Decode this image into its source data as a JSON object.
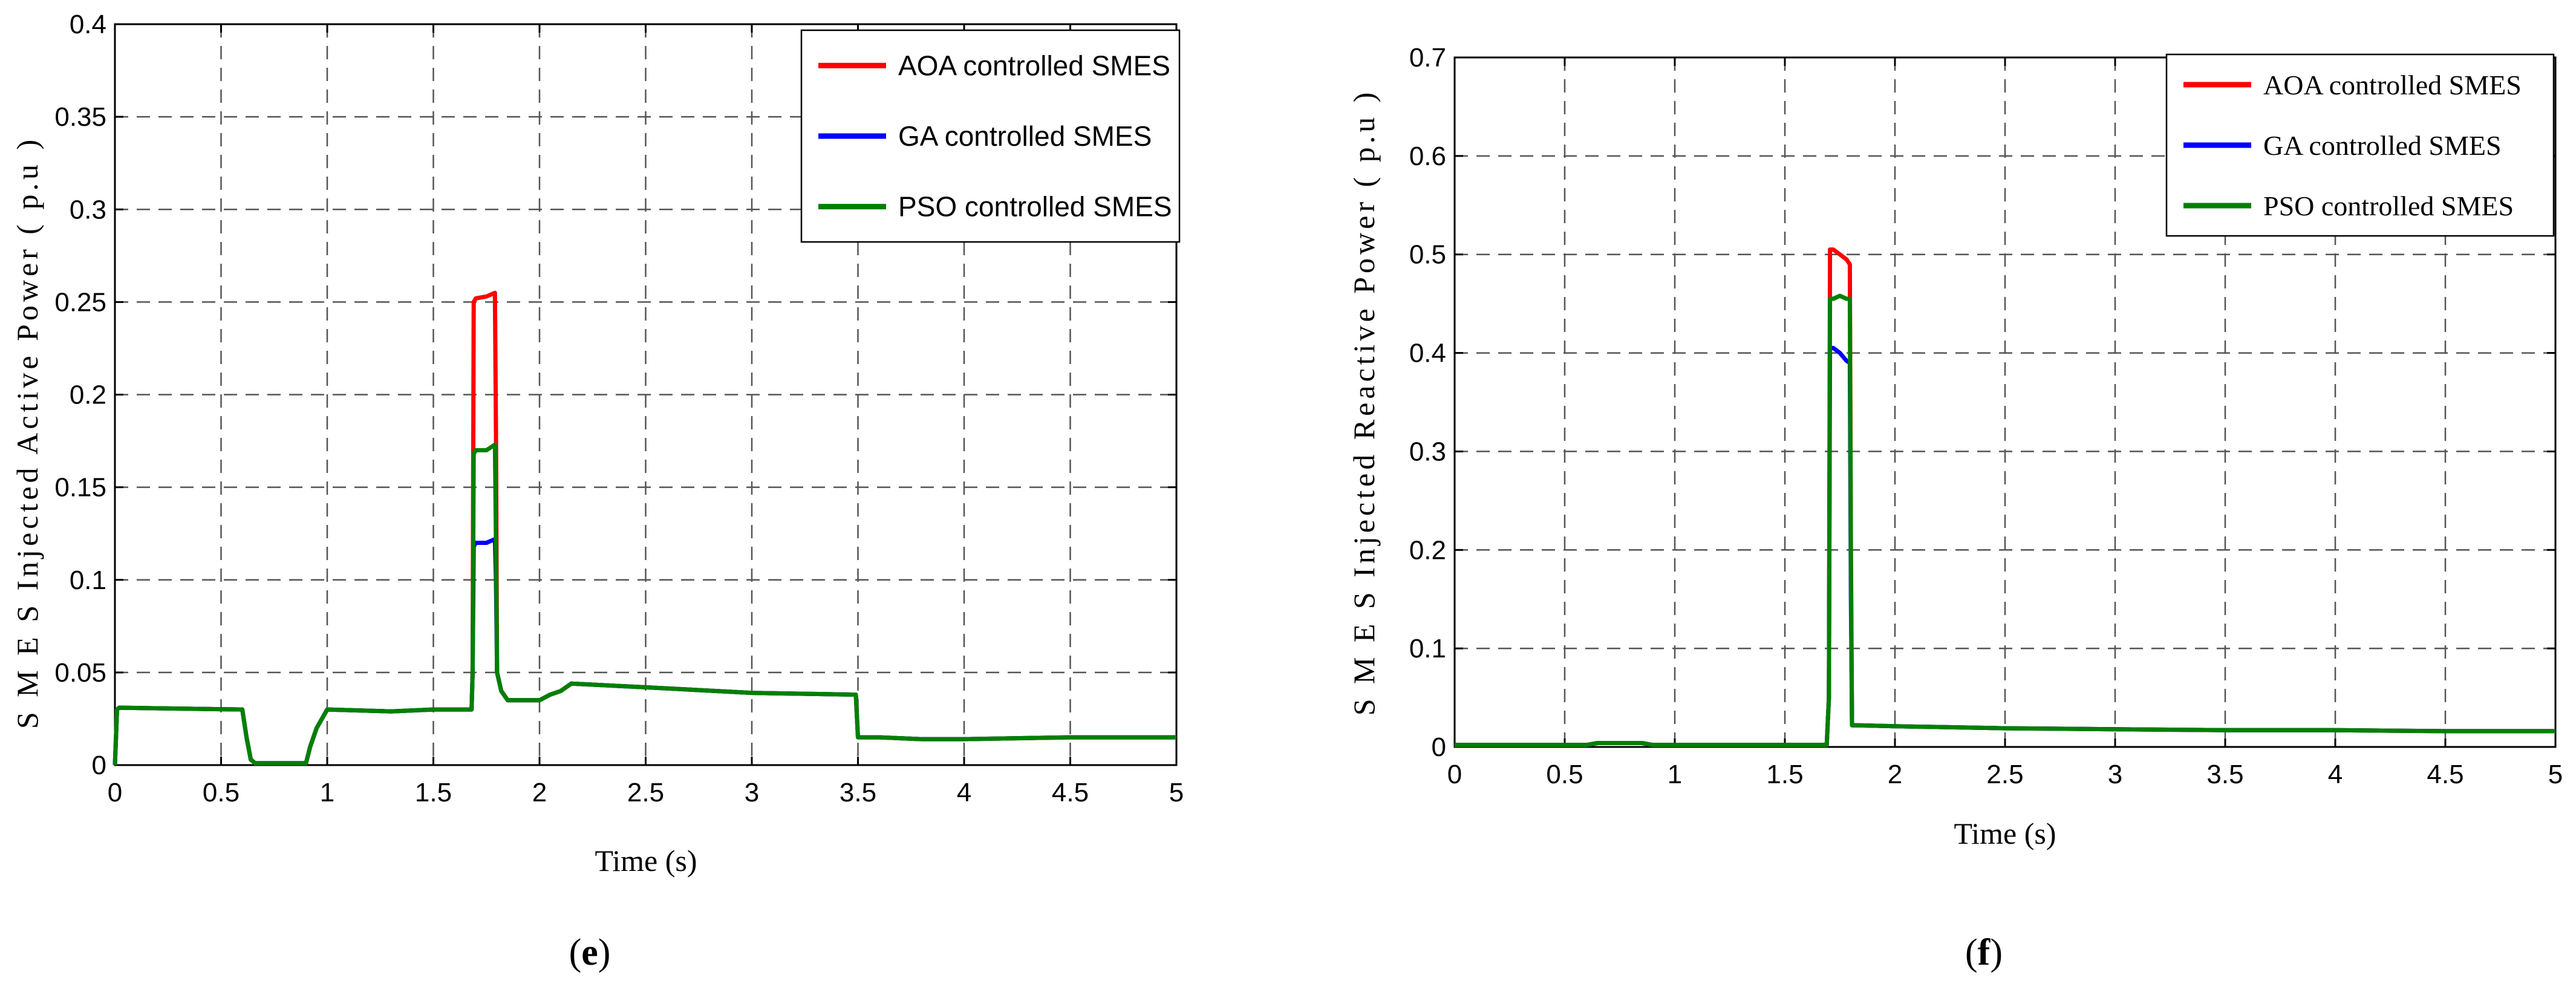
{
  "chart_data": [
    {
      "id": "e",
      "type": "line",
      "caption_open": "(",
      "caption_letter": "e",
      "caption_close": ")",
      "xlabel": "Time (s)",
      "ylabel": "S M E S  Injected  Active  Power  ( p.u )",
      "xlim": [
        0,
        5
      ],
      "ylim": [
        0,
        0.4
      ],
      "xticks": [
        0,
        0.5,
        1,
        1.5,
        2,
        2.5,
        3,
        3.5,
        4,
        4.5,
        5
      ],
      "xtick_labels": [
        "0",
        "0.5",
        "1",
        "1.5",
        "2",
        "2.5",
        "3",
        "3.5",
        "4",
        "4.5",
        "5"
      ],
      "yticks": [
        0,
        0.05,
        0.1,
        0.15,
        0.2,
        0.25,
        0.3,
        0.35,
        0.4
      ],
      "ytick_labels": [
        "0",
        "0.05",
        "0.1",
        "0.15",
        "0.2",
        "0.25",
        "0.3",
        "0.35",
        "0.4"
      ],
      "grid": true,
      "legend_position": "top-right",
      "series": [
        {
          "name": "AOA controlled SMES",
          "color": "#ff0000",
          "x": [
            0,
            0.01,
            0.02,
            0.6,
            0.62,
            0.64,
            0.66,
            0.7,
            0.9,
            0.92,
            0.95,
            1.0,
            1.3,
            1.5,
            1.65,
            1.68,
            1.685,
            1.69,
            1.7,
            1.75,
            1.79,
            1.795,
            1.8,
            1.82,
            1.85,
            2.0,
            2.05,
            2.1,
            2.15,
            2.5,
            3.0,
            3.49,
            3.5,
            3.6,
            3.8,
            4.0,
            4.5,
            5.0
          ],
          "y": [
            0,
            0.03,
            0.031,
            0.03,
            0.015,
            0.003,
            0.001,
            0.001,
            0.001,
            0.01,
            0.02,
            0.03,
            0.029,
            0.03,
            0.03,
            0.03,
            0.05,
            0.25,
            0.252,
            0.253,
            0.255,
            0.18,
            0.05,
            0.04,
            0.035,
            0.035,
            0.038,
            0.04,
            0.044,
            0.042,
            0.039,
            0.038,
            0.015,
            0.015,
            0.014,
            0.014,
            0.015,
            0.015
          ]
        },
        {
          "name": "GA controlled SMES",
          "color": "#0000ff",
          "x": [
            0,
            0.01,
            0.02,
            0.6,
            0.62,
            0.64,
            0.66,
            0.7,
            0.9,
            0.92,
            0.95,
            1.0,
            1.3,
            1.5,
            1.65,
            1.68,
            1.685,
            1.69,
            1.7,
            1.75,
            1.79,
            1.795,
            1.8,
            1.82,
            1.85,
            2.0,
            2.05,
            2.1,
            2.15,
            2.5,
            3.0,
            3.49,
            3.5,
            3.6,
            3.8,
            4.0,
            4.5,
            5.0
          ],
          "y": [
            0,
            0.03,
            0.031,
            0.03,
            0.015,
            0.003,
            0.001,
            0.001,
            0.001,
            0.01,
            0.02,
            0.03,
            0.029,
            0.03,
            0.03,
            0.03,
            0.05,
            0.118,
            0.12,
            0.12,
            0.122,
            0.1,
            0.05,
            0.04,
            0.035,
            0.035,
            0.038,
            0.04,
            0.044,
            0.042,
            0.039,
            0.038,
            0.015,
            0.015,
            0.014,
            0.014,
            0.015,
            0.015
          ]
        },
        {
          "name": "PSO controlled SMES",
          "color": "#008000",
          "x": [
            0,
            0.01,
            0.02,
            0.6,
            0.62,
            0.64,
            0.66,
            0.7,
            0.9,
            0.92,
            0.95,
            1.0,
            1.3,
            1.5,
            1.65,
            1.68,
            1.685,
            1.69,
            1.7,
            1.75,
            1.79,
            1.795,
            1.8,
            1.82,
            1.85,
            2.0,
            2.05,
            2.1,
            2.15,
            2.5,
            3.0,
            3.49,
            3.5,
            3.6,
            3.8,
            4.0,
            4.5,
            5.0
          ],
          "y": [
            0,
            0.03,
            0.031,
            0.03,
            0.015,
            0.003,
            0.001,
            0.001,
            0.001,
            0.01,
            0.02,
            0.03,
            0.029,
            0.03,
            0.03,
            0.03,
            0.05,
            0.168,
            0.17,
            0.17,
            0.173,
            0.12,
            0.05,
            0.04,
            0.035,
            0.035,
            0.038,
            0.04,
            0.044,
            0.042,
            0.039,
            0.038,
            0.015,
            0.015,
            0.014,
            0.014,
            0.015,
            0.015
          ]
        }
      ]
    },
    {
      "id": "f",
      "type": "line",
      "caption_open": "(",
      "caption_letter": "f",
      "caption_close": ")",
      "xlabel": "Time (s)",
      "ylabel": "S M E S  Injected  Reactive  Power  ( p.u )",
      "xlim": [
        0,
        5
      ],
      "ylim": [
        0,
        0.7
      ],
      "xticks": [
        0,
        0.5,
        1,
        1.5,
        2,
        2.5,
        3,
        3.5,
        4,
        4.5,
        5
      ],
      "xtick_labels": [
        "0",
        "0.5",
        "1",
        "1.5",
        "2",
        "2.5",
        "3",
        "3.5",
        "4",
        "4.5",
        "5"
      ],
      "yticks": [
        0,
        0.1,
        0.2,
        0.3,
        0.4,
        0.5,
        0.6,
        0.7
      ],
      "ytick_labels": [
        "0",
        "0.1",
        "0.2",
        "0.3",
        "0.4",
        "0.5",
        "0.6",
        "0.7"
      ],
      "grid": true,
      "legend_position": "top-right",
      "series": [
        {
          "name": "AOA controlled SMES",
          "color": "#ff0000",
          "x": [
            0,
            0.6,
            0.65,
            0.85,
            0.9,
            1.69,
            1.7,
            1.705,
            1.72,
            1.75,
            1.78,
            1.795,
            1.8,
            1.805,
            1.83,
            2.0,
            2.5,
            3.0,
            3.5,
            4.0,
            4.5,
            5.0
          ],
          "y": [
            0.002,
            0.002,
            0.004,
            0.004,
            0.002,
            0.002,
            0.05,
            0.505,
            0.505,
            0.5,
            0.495,
            0.49,
            0.2,
            0.022,
            0.022,
            0.021,
            0.019,
            0.018,
            0.017,
            0.017,
            0.016,
            0.016
          ]
        },
        {
          "name": "GA controlled SMES",
          "color": "#0000ff",
          "x": [
            0,
            0.6,
            0.65,
            0.85,
            0.9,
            1.69,
            1.7,
            1.705,
            1.72,
            1.75,
            1.78,
            1.795,
            1.8,
            1.805,
            1.83,
            2.0,
            2.5,
            3.0,
            3.5,
            4.0,
            4.5,
            5.0
          ],
          "y": [
            0.002,
            0.002,
            0.004,
            0.004,
            0.002,
            0.002,
            0.05,
            0.405,
            0.405,
            0.4,
            0.392,
            0.39,
            0.15,
            0.022,
            0.022,
            0.021,
            0.019,
            0.018,
            0.017,
            0.017,
            0.016,
            0.016
          ]
        },
        {
          "name": "PSO controlled SMES",
          "color": "#008000",
          "x": [
            0,
            0.6,
            0.65,
            0.85,
            0.9,
            1.69,
            1.7,
            1.705,
            1.72,
            1.75,
            1.78,
            1.795,
            1.8,
            1.805,
            1.83,
            2.0,
            2.5,
            3.0,
            3.5,
            4.0,
            4.5,
            5.0
          ],
          "y": [
            0.002,
            0.002,
            0.004,
            0.004,
            0.002,
            0.002,
            0.05,
            0.455,
            0.455,
            0.458,
            0.455,
            0.455,
            0.18,
            0.022,
            0.022,
            0.021,
            0.019,
            0.018,
            0.017,
            0.017,
            0.016,
            0.016
          ]
        }
      ]
    }
  ]
}
